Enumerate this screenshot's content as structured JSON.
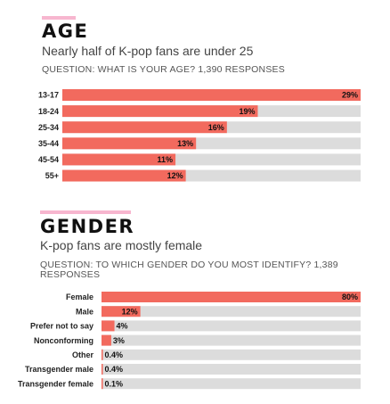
{
  "colors": {
    "bar": "#f26a5e",
    "track": "#dcdcdc",
    "accent": "#f7b6cf"
  },
  "chart_data": [
    {
      "type": "bar",
      "orientation": "horizontal",
      "title": "AGE",
      "subtitle": "Nearly half of K-pop fans are under 25",
      "question": "QUESTION: WHAT IS YOUR AGE? 1,390 RESPONSES",
      "categories": [
        "13-17",
        "18-24",
        "25-34",
        "35-44",
        "45-54",
        "55+"
      ],
      "values": [
        29,
        19,
        16,
        13,
        11,
        12
      ],
      "value_labels": [
        "29%",
        "19%",
        "16%",
        "13%",
        "11%",
        "12%"
      ],
      "xlim": [
        0,
        29
      ],
      "unit": "%"
    },
    {
      "type": "bar",
      "orientation": "horizontal",
      "title": "GENDER",
      "subtitle": "K-pop fans are mostly female",
      "question": "QUESTION: TO WHICH GENDER DO YOU MOST IDENTIFY? 1,389 RESPONSES",
      "categories": [
        "Female",
        "Male",
        "Prefer not to say",
        "Nonconforming",
        "Other",
        "Transgender male",
        "Transgender female"
      ],
      "values": [
        80,
        12,
        4,
        3,
        0.4,
        0.4,
        0.1
      ],
      "value_labels": [
        "80%",
        "12%",
        "4%",
        "3%",
        "0.4%",
        "0.4%",
        "0.1%"
      ],
      "xlim": [
        0,
        80
      ],
      "unit": "%"
    }
  ]
}
